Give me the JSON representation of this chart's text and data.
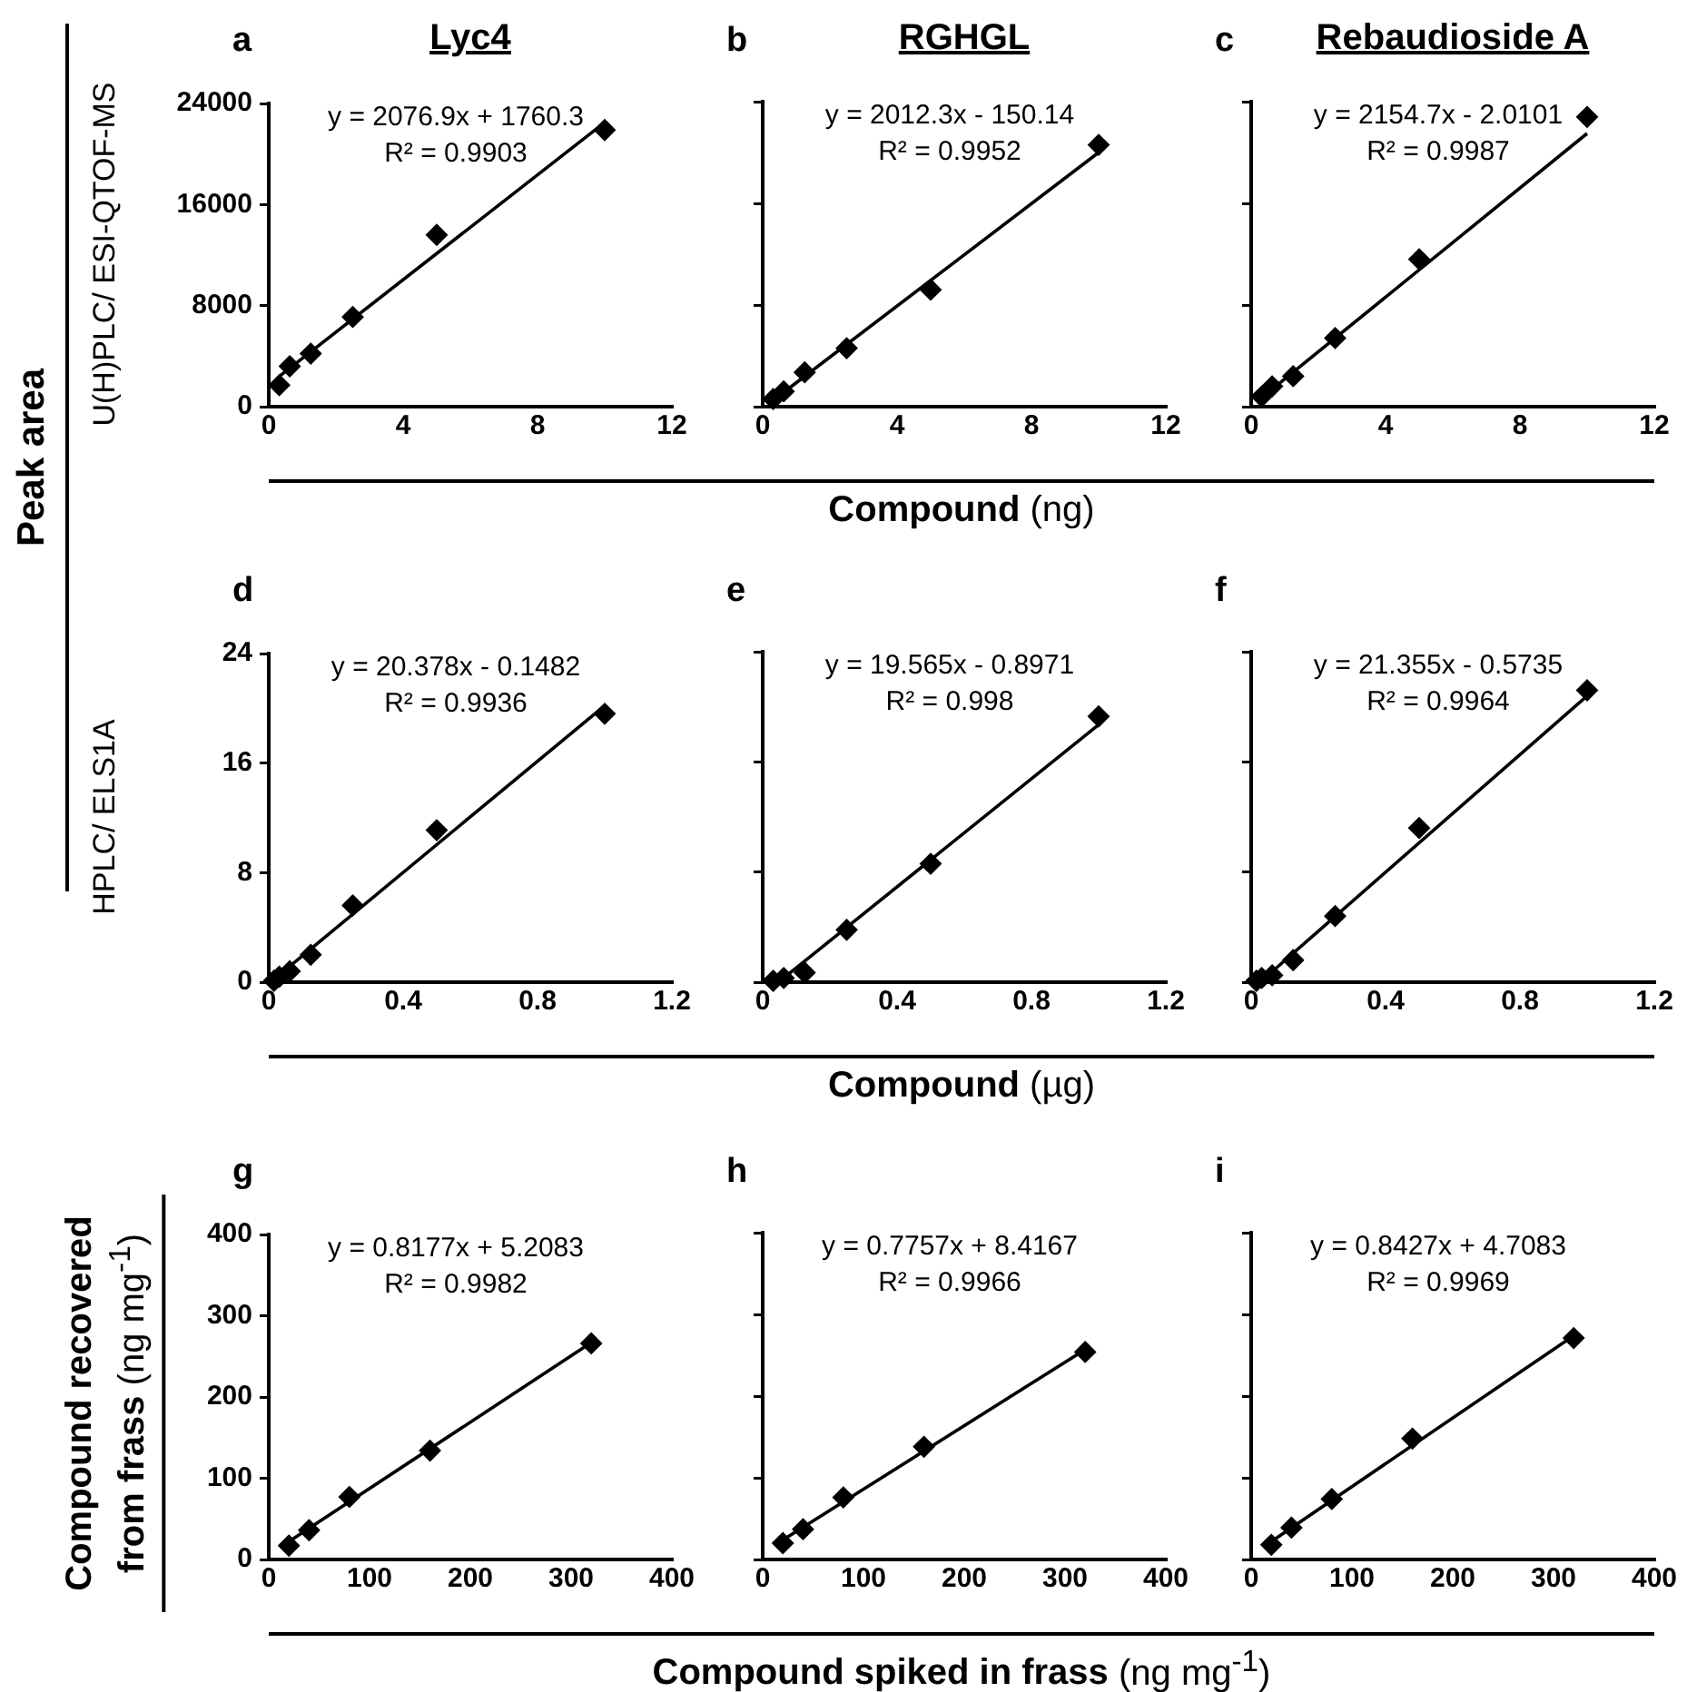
{
  "chart_data": [
    {
      "type": "scatter",
      "title": "Lyc4",
      "ylabel": "U(H)PLC/ ESI-QTOF-MS",
      "annotations": [
        "a",
        "y = 2076.9x + 1760.3",
        "R² = 0.9903",
        "Peak area"
      ],
      "xlim": [
        0,
        12
      ],
      "xticks": [
        0,
        4,
        8,
        12
      ],
      "ylim": [
        0,
        24000
      ],
      "yticks": [
        0,
        8000,
        16000,
        24000
      ],
      "series": [
        {
          "marker": "diamond",
          "color": "#000000",
          "x": [
            0.3125,
            0.625,
            1.25,
            2.5,
            5,
            10
          ],
          "values": [
            1700,
            3200,
            4200,
            7100,
            13600,
            21900
          ]
        },
        {
          "type": "line",
          "line_style": "solid",
          "color": "#000000",
          "x": [
            0.3125,
            10
          ],
          "values": [
            2400,
            22500
          ]
        }
      ]
    },
    {
      "type": "scatter",
      "title": "RGHGL",
      "xlabel": "Compound (ng)",
      "annotations": [
        "b",
        "y = 2012.3x - 150.14",
        "R² = 0.9952"
      ],
      "tick_labels": "x",
      "xlim": [
        0,
        12
      ],
      "xticks": [
        0,
        4,
        8,
        12
      ],
      "ylim": [
        0,
        24000
      ],
      "yticks": [
        0,
        8000,
        16000,
        24000
      ],
      "series": [
        {
          "marker": "diamond",
          "color": "#000000",
          "x": [
            0.3125,
            0.625,
            1.25,
            2.5,
            5,
            10
          ],
          "values": [
            600,
            1200,
            2700,
            4600,
            9200,
            20600
          ]
        },
        {
          "type": "line",
          "line_style": "solid",
          "color": "#000000",
          "x": [
            0.3125,
            10
          ],
          "values": [
            500,
            20000
          ]
        }
      ]
    },
    {
      "type": "scatter",
      "title": "Rebaudioside A",
      "annotations": [
        "c",
        "y = 2154.7x - 2.0101",
        "R² = 0.9987"
      ],
      "tick_labels": "x",
      "xlim": [
        0,
        12
      ],
      "xticks": [
        0,
        4,
        8,
        12
      ],
      "ylim": [
        0,
        24000
      ],
      "yticks": [
        0,
        8000,
        16000,
        24000
      ],
      "series": [
        {
          "marker": "diamond",
          "color": "#000000",
          "x": [
            0.3125,
            0.625,
            1.25,
            2.5,
            5,
            10
          ],
          "values": [
            800,
            1600,
            2400,
            5400,
            11600,
            22800
          ]
        },
        {
          "type": "line",
          "line_style": "solid",
          "color": "#000000",
          "x": [
            0.3125,
            10
          ],
          "values": [
            700,
            21500
          ]
        }
      ]
    },
    {
      "type": "scatter",
      "ylabel": "HPLC/ ELS1A",
      "annotations": [
        "d",
        "y = 20.378x - 0.1482",
        "R² = 0.9936"
      ],
      "xlim": [
        0,
        1.2
      ],
      "xticks": [
        0,
        0.4,
        0.8,
        1.2
      ],
      "ylim": [
        0,
        24
      ],
      "yticks": [
        0,
        8,
        16,
        24
      ],
      "series": [
        {
          "marker": "diamond",
          "color": "#000000",
          "x": [
            0.015625,
            0.03125,
            0.0625,
            0.125,
            0.25,
            0.5,
            1
          ],
          "values": [
            0.1,
            0.4,
            0.8,
            2,
            5.6,
            11.1,
            19.6
          ]
        },
        {
          "type": "line",
          "line_style": "solid",
          "color": "#000000",
          "x": [
            0.015625,
            1
          ],
          "values": [
            0.2,
            20.2
          ]
        }
      ]
    },
    {
      "type": "scatter",
      "xlabel": "Compound (µg)",
      "annotations": [
        "e",
        "y = 19.565x - 0.8971",
        "R² = 0.998"
      ],
      "tick_labels": "x",
      "xlim": [
        0,
        1.2
      ],
      "xticks": [
        0,
        0.4,
        0.8,
        1.2
      ],
      "ylim": [
        0,
        24
      ],
      "yticks": [
        0,
        8,
        16,
        24
      ],
      "series": [
        {
          "marker": "diamond",
          "color": "#000000",
          "x": [
            0.03125,
            0.0625,
            0.125,
            0.25,
            0.5,
            1
          ],
          "values": [
            0.1,
            0.3,
            0.7,
            3.8,
            8.6,
            19.3
          ]
        },
        {
          "type": "line",
          "line_style": "solid",
          "color": "#000000",
          "x": [
            0.0625,
            1
          ],
          "values": [
            0.3,
            18.7
          ]
        }
      ]
    },
    {
      "type": "scatter",
      "annotations": [
        "f",
        "y = 21.355x - 0.5735",
        "R² = 0.9964"
      ],
      "tick_labels": "x",
      "xlim": [
        0,
        1.2
      ],
      "xticks": [
        0,
        0.4,
        0.8,
        1.2
      ],
      "ylim": [
        0,
        24
      ],
      "yticks": [
        0,
        8,
        16,
        24
      ],
      "series": [
        {
          "marker": "diamond",
          "color": "#000000",
          "x": [
            0.015625,
            0.03125,
            0.0625,
            0.125,
            0.25,
            0.5,
            1
          ],
          "values": [
            0.1,
            0.3,
            0.5,
            1.6,
            4.8,
            11.2,
            21.2
          ]
        },
        {
          "type": "line",
          "line_style": "solid",
          "color": "#000000",
          "x": [
            0.03125,
            1
          ],
          "values": [
            0.1,
            20.8
          ]
        }
      ]
    },
    {
      "type": "scatter",
      "ylabel": "Compound recovered from  frass (ng mg$^{-1}$)",
      "annotations": [
        "g",
        "y = 0.8177x + 5.2083",
        "R² = 0.9982"
      ],
      "xlim": [
        0,
        400
      ],
      "xticks": [
        0,
        100,
        200,
        300,
        400
      ],
      "ylim": [
        0,
        400
      ],
      "yticks": [
        0,
        100,
        200,
        300,
        400
      ],
      "series": [
        {
          "marker": "diamond",
          "color": "#000000",
          "x": [
            20,
            40,
            80,
            160,
            320
          ],
          "values": [
            17,
            36,
            77,
            134,
            266
          ]
        },
        {
          "type": "line",
          "line_style": "solid",
          "color": "#000000",
          "x": [
            20,
            320
          ],
          "values": [
            22,
            267
          ]
        }
      ]
    },
    {
      "type": "scatter",
      "xlabel": "Compound spiked in frass (ng mg$^{-1}$)",
      "annotations": [
        "h",
        "y = 0.7757x + 8.4167",
        "R² = 0.9966"
      ],
      "tick_labels": "x",
      "xlim": [
        0,
        400
      ],
      "xticks": [
        0,
        100,
        200,
        300,
        400
      ],
      "ylim": [
        0,
        400
      ],
      "yticks": [
        0,
        100,
        200,
        300,
        400
      ],
      "series": [
        {
          "marker": "diamond",
          "color": "#000000",
          "x": [
            20,
            40,
            80,
            160,
            320
          ],
          "values": [
            20,
            37,
            76,
            138,
            254
          ]
        },
        {
          "type": "line",
          "line_style": "solid",
          "color": "#000000",
          "x": [
            20,
            320
          ],
          "values": [
            24,
            257
          ]
        }
      ]
    },
    {
      "type": "scatter",
      "annotations": [
        "i",
        "y = 0.8427x + 4.7083",
        "R² = 0.9969"
      ],
      "tick_labels": "x",
      "xlim": [
        0,
        400
      ],
      "xticks": [
        0,
        100,
        200,
        300,
        400
      ],
      "ylim": [
        0,
        400
      ],
      "yticks": [
        0,
        100,
        200,
        300,
        400
      ],
      "series": [
        {
          "marker": "diamond",
          "color": "#000000",
          "x": [
            20,
            40,
            80,
            160,
            320
          ],
          "values": [
            18,
            39,
            74,
            148,
            271
          ]
        },
        {
          "type": "line",
          "line_style": "solid",
          "color": "#000000",
          "x": [
            20,
            320
          ],
          "values": [
            22,
            274
          ]
        }
      ]
    }
  ]
}
